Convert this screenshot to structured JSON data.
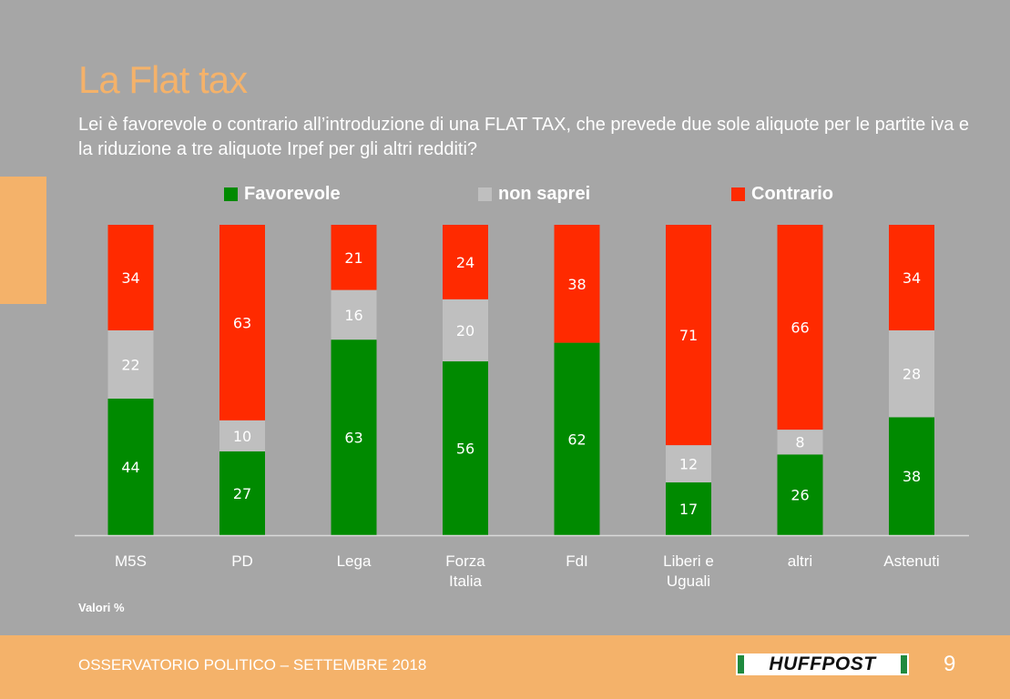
{
  "title": "La Flat tax",
  "subtitle": "Lei è favorevole o contrario all’introduzione di una FLAT TAX, che prevede due sole aliquote per le partite iva e la riduzione a tre aliquote Irpef per gli altri redditi?",
  "note": "Valori %",
  "footer": {
    "text": "OSSERVATORIO POLITICO – SETTEMBRE 2018",
    "logo": "HUFFPOST",
    "page": "9"
  },
  "colors": {
    "favorevole": "#008a00",
    "non_saprei": "#bfbfbf",
    "contrario": "#ff2a00",
    "accent": "#f4b26a"
  },
  "chart_data": {
    "type": "bar",
    "stacked": true,
    "orientation": "vertical",
    "categories": [
      [
        "M5S"
      ],
      [
        "PD"
      ],
      [
        "Lega"
      ],
      [
        "Forza",
        "Italia"
      ],
      [
        "FdI"
      ],
      [
        "Liberi e",
        "Uguali"
      ],
      [
        "altri"
      ],
      [
        "Astenuti"
      ]
    ],
    "series": [
      {
        "name": "Favorevole",
        "values": [
          44,
          27,
          63,
          56,
          62,
          17,
          26,
          38
        ]
      },
      {
        "name": "non saprei",
        "values": [
          22,
          10,
          16,
          20,
          0,
          12,
          8,
          28
        ]
      },
      {
        "name": "Contrario",
        "values": [
          34,
          63,
          21,
          24,
          38,
          71,
          66,
          34
        ]
      }
    ],
    "legend_position": "top",
    "ylim": [
      0,
      100
    ],
    "grid": false
  }
}
